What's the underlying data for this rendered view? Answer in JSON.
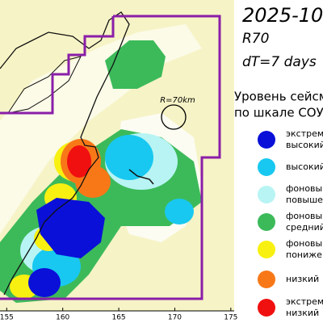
{
  "title": "2025-10-",
  "method": "R70",
  "window": "dT=7 days",
  "radius_label": "R=70km",
  "legend": {
    "title": [
      "Уровень сейсм",
      "по шкале СОУ"
    ],
    "items": [
      {
        "lines": [
          "экстрема",
          "высокий"
        ],
        "color": "#0a10d8"
      },
      {
        "lines": [
          "высокий"
        ],
        "color": "#18c8f0"
      },
      {
        "lines": [
          "фоновы",
          "повышен"
        ],
        "color": "#b8f4f4"
      },
      {
        "lines": [
          "фоновы",
          "средний"
        ],
        "color": "#3cba5a"
      },
      {
        "lines": [
          "фоновы",
          "понижен"
        ],
        "color": "#f8f010"
      },
      {
        "lines": [
          "низкий"
        ],
        "color": "#f87818"
      },
      {
        "lines": [
          "экстрема",
          "низкий"
        ],
        "color": "#f01010"
      }
    ]
  },
  "axis": {
    "xlim": [
      154.4,
      175.3
    ],
    "xticks": [
      155,
      160,
      165,
      170,
      175
    ]
  }
}
